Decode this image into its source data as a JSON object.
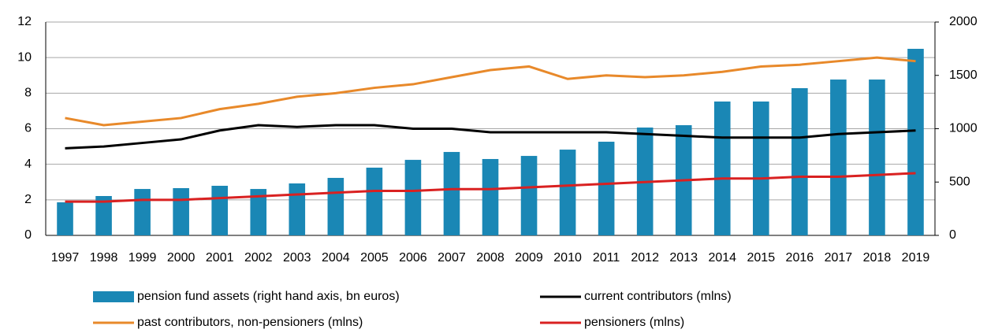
{
  "chart_data": {
    "type": "bar",
    "categories": [
      "1997",
      "1998",
      "1999",
      "2000",
      "2001",
      "2002",
      "2003",
      "2004",
      "2005",
      "2006",
      "2007",
      "2008",
      "2009",
      "2010",
      "2011",
      "2012",
      "2013",
      "2014",
      "2015",
      "2016",
      "2017",
      "2018",
      "2019"
    ],
    "series": [
      {
        "name": "pension fund assets (right hand axis, bn euros)",
        "type": "bar",
        "axis": "y2",
        "color": "#1a87b5",
        "values": [
          310,
          369,
          435,
          443,
          465,
          435,
          487,
          539,
          635,
          708,
          782,
          716,
          745,
          804,
          878,
          1011,
          1033,
          1255,
          1255,
          1380,
          1461,
          1461,
          1749
        ]
      },
      {
        "name": "current contributors (mlns)",
        "type": "line",
        "color": "#000000",
        "values": [
          4.9,
          5.0,
          5.2,
          5.4,
          5.9,
          6.2,
          6.1,
          6.2,
          6.2,
          6.0,
          6.0,
          5.8,
          5.8,
          5.8,
          5.8,
          5.7,
          5.6,
          5.5,
          5.5,
          5.5,
          5.7,
          5.8,
          5.9
        ]
      },
      {
        "name": "past contributors, non-pensioners (mlns)",
        "type": "line",
        "color": "#e8892a",
        "values": [
          6.6,
          6.2,
          6.4,
          6.6,
          7.1,
          7.4,
          7.8,
          8.0,
          8.3,
          8.5,
          8.9,
          9.3,
          9.5,
          8.8,
          9.0,
          8.9,
          9.0,
          9.2,
          9.5,
          9.6,
          9.8,
          10.0,
          9.8
        ]
      },
      {
        "name": "pensioners (mlns)",
        "type": "line",
        "color": "#d92121",
        "values": [
          1.9,
          1.9,
          2.0,
          2.0,
          2.1,
          2.2,
          2.3,
          2.4,
          2.5,
          2.5,
          2.6,
          2.6,
          2.7,
          2.8,
          2.9,
          3.0,
          3.1,
          3.2,
          3.2,
          3.3,
          3.3,
          3.4,
          3.5
        ]
      }
    ],
    "ylim": [
      0,
      12
    ],
    "yticks": [
      0,
      2,
      4,
      6,
      8,
      10,
      12
    ],
    "y2lim": [
      0,
      2000
    ],
    "y2ticks": [
      0,
      500,
      1000,
      1500,
      2000
    ],
    "grid": true
  }
}
